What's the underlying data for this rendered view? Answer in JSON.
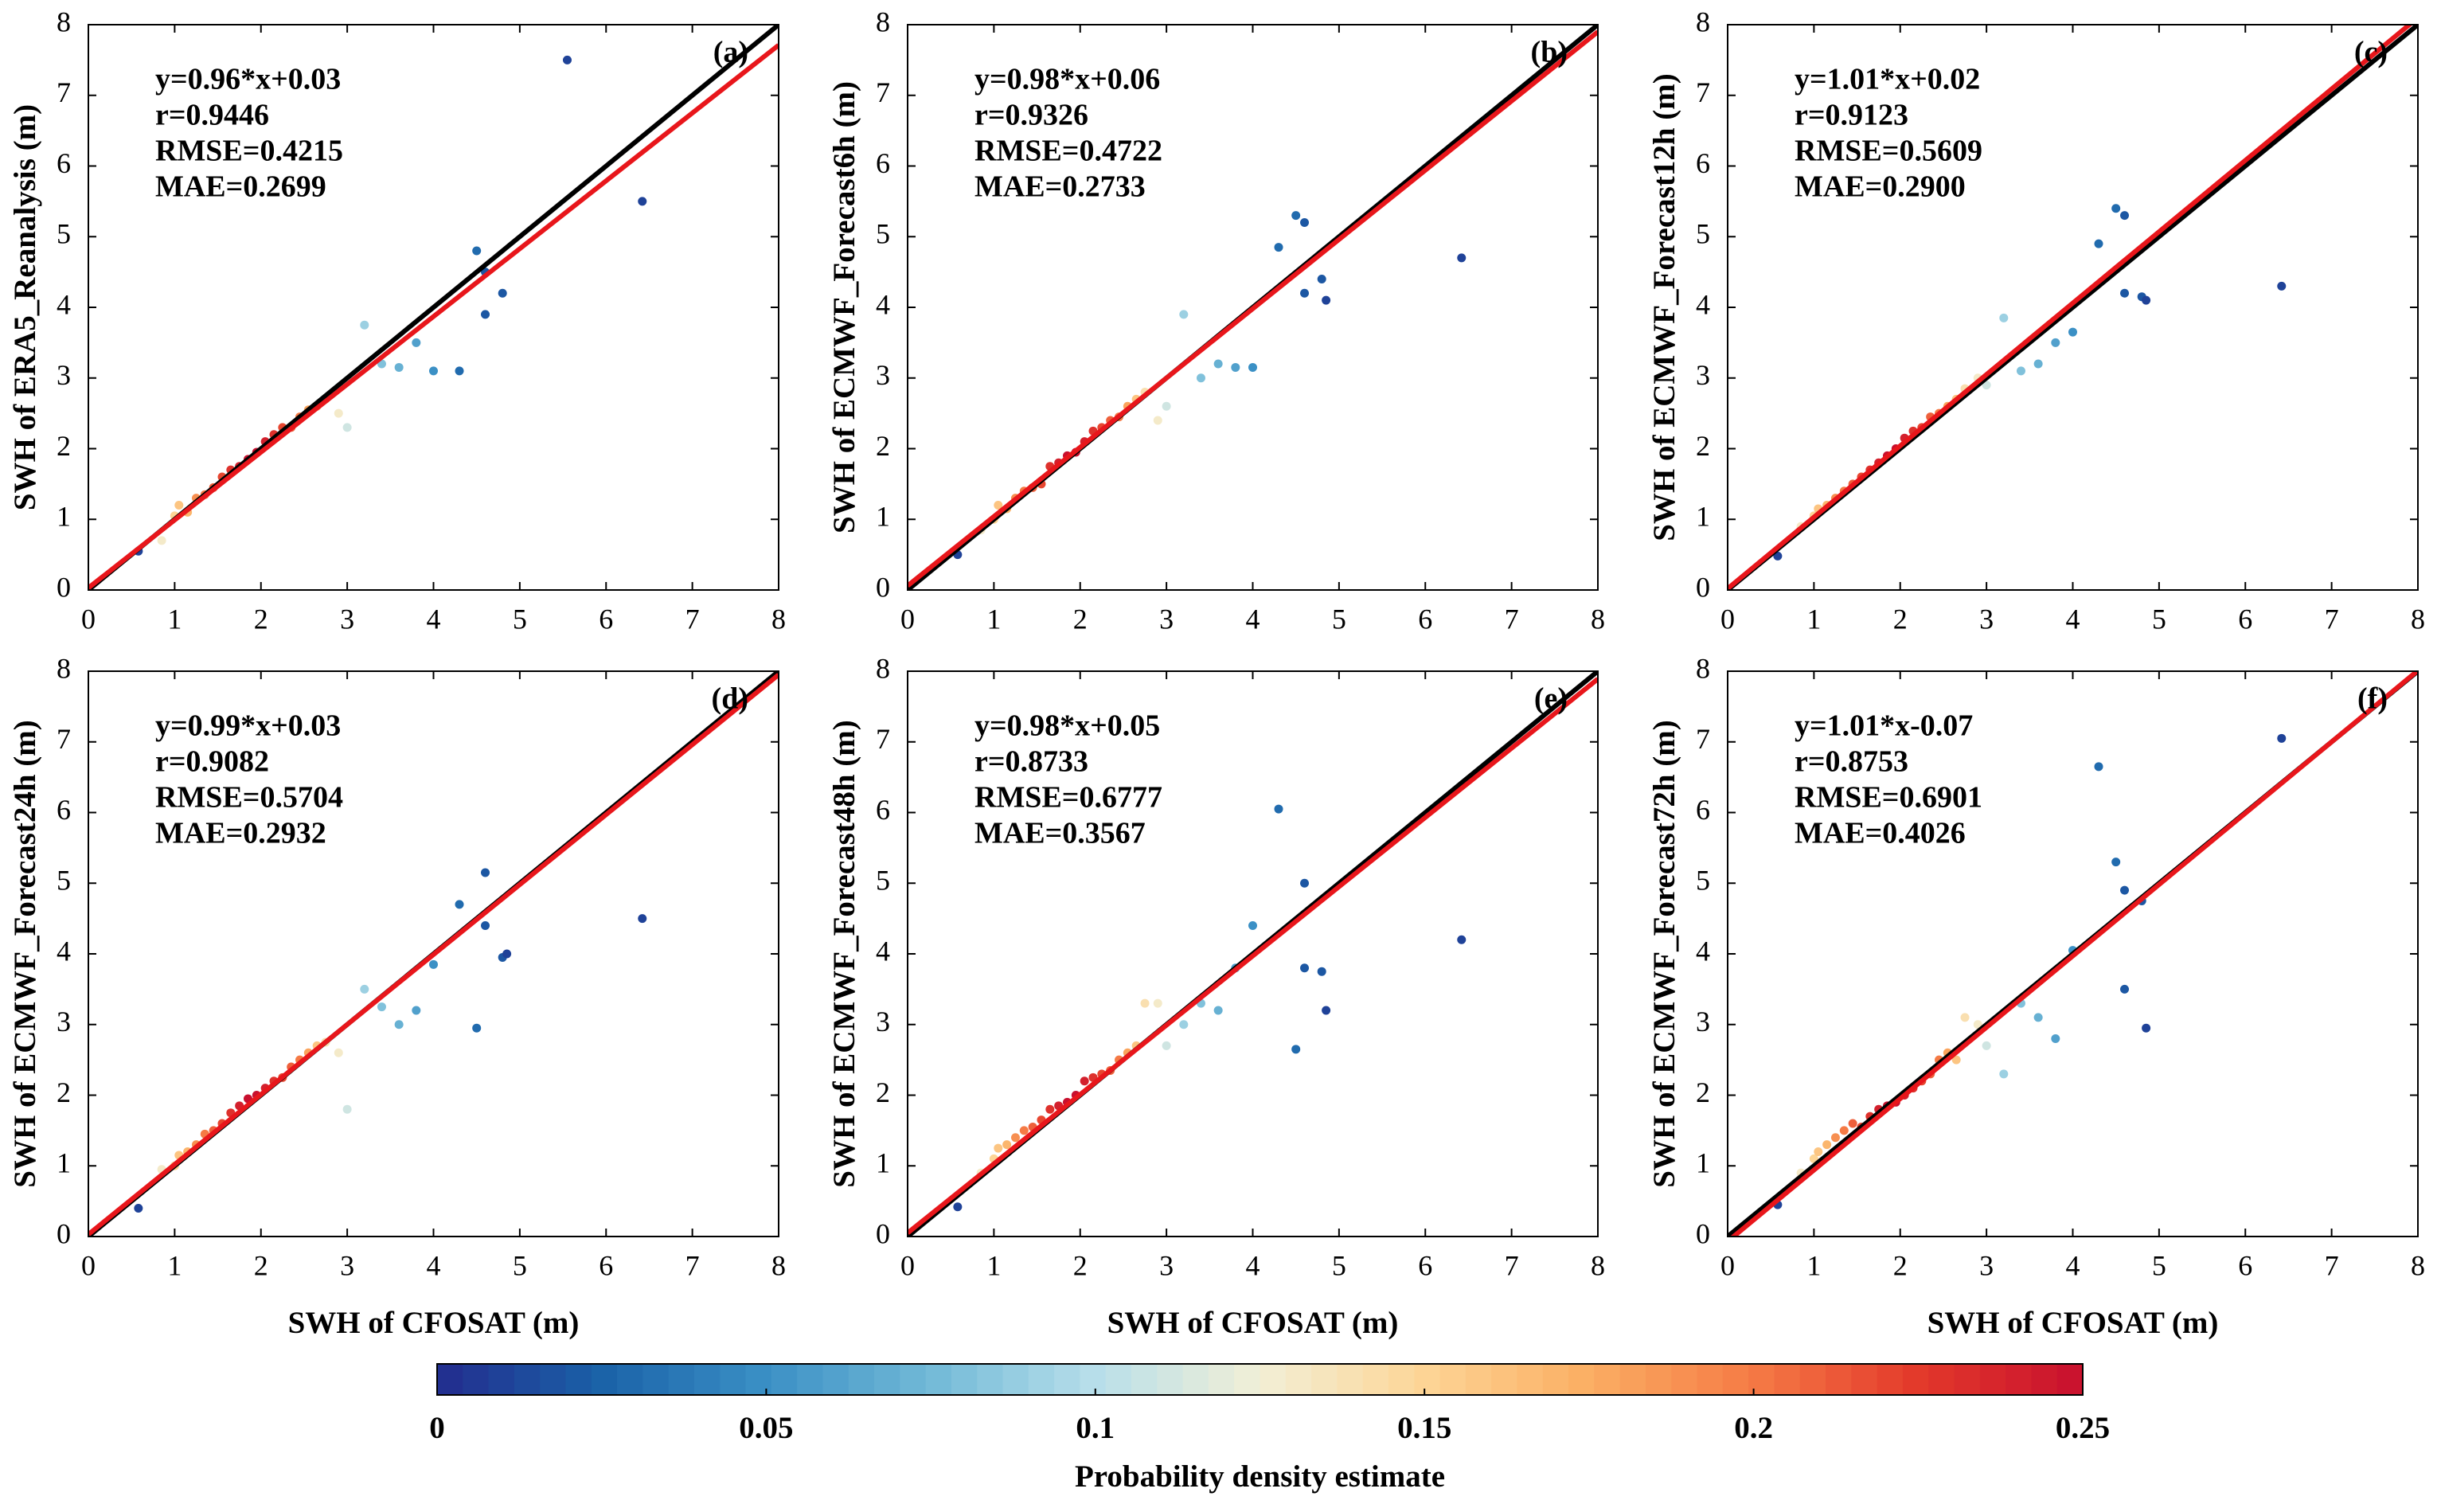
{
  "chart_data": [
    {
      "type": "scatter",
      "panel_label": "(a)",
      "annotations": [
        "y=0.96*x+0.03",
        "r=0.9446",
        "RMSE=0.4215",
        "MAE=0.2699"
      ],
      "ylabel": "SWH of ERA5_Reanalysis (m)",
      "xlim": [
        0,
        8
      ],
      "ylim": [
        0,
        8
      ],
      "xticks": [
        0,
        1,
        2,
        3,
        4,
        5,
        6,
        7,
        8
      ],
      "yticks": [
        0,
        1,
        2,
        3,
        4,
        5,
        6,
        7,
        8
      ],
      "series": [
        {
          "x": [
            0.58,
            0.85,
            1.0,
            1.05,
            1.15,
            1.25,
            1.35,
            1.45,
            1.55,
            1.65,
            1.75,
            1.85,
            1.95,
            2.05,
            2.15,
            2.25,
            2.35,
            2.45,
            2.55,
            2.65,
            2.75,
            2.9,
            3.0,
            3.2,
            3.4,
            3.6,
            3.8,
            4.0,
            4.3,
            4.5,
            4.6,
            4.6,
            4.8,
            5.55,
            6.42
          ],
          "values": [
            0.55,
            0.7,
            1.05,
            1.2,
            1.1,
            1.3,
            1.35,
            1.45,
            1.6,
            1.7,
            1.75,
            1.85,
            1.95,
            2.1,
            2.2,
            2.3,
            2.3,
            2.45,
            2.55,
            2.6,
            2.7,
            2.5,
            2.3,
            3.75,
            3.2,
            3.15,
            3.5,
            3.1,
            3.1,
            4.8,
            4.5,
            3.9,
            4.2,
            7.5,
            5.5
          ],
          "density": [
            0.01,
            0.13,
            0.15,
            0.16,
            0.17,
            0.19,
            0.2,
            0.21,
            0.22,
            0.23,
            0.24,
            0.25,
            0.25,
            0.24,
            0.23,
            0.22,
            0.21,
            0.2,
            0.18,
            0.16,
            0.14,
            0.13,
            0.11,
            0.09,
            0.08,
            0.07,
            0.06,
            0.05,
            0.03,
            0.03,
            0.02,
            0.02,
            0.02,
            0.01,
            0.01
          ]
        }
      ],
      "lines": [
        {
          "color": "#000000",
          "x": [
            0,
            8
          ],
          "y": [
            0,
            8
          ]
        },
        {
          "color": "#e8161b",
          "x": [
            0,
            8
          ],
          "y": [
            0.03,
            7.71
          ]
        }
      ]
    },
    {
      "type": "scatter",
      "panel_label": "(b)",
      "annotations": [
        "y=0.98*x+0.06",
        "r=0.9326",
        "RMSE=0.4722",
        "MAE=0.2733"
      ],
      "ylabel": "SWH of ECMWF_Forecast6h (m)",
      "xlim": [
        0,
        8
      ],
      "ylim": [
        0,
        8
      ],
      "xticks": [
        0,
        1,
        2,
        3,
        4,
        5,
        6,
        7,
        8
      ],
      "yticks": [
        0,
        1,
        2,
        3,
        4,
        5,
        6,
        7,
        8
      ],
      "series": [
        {
          "x": [
            0.58,
            0.85,
            1.0,
            1.05,
            1.15,
            1.25,
            1.35,
            1.45,
            1.55,
            1.65,
            1.75,
            1.85,
            1.95,
            2.05,
            2.15,
            2.25,
            2.35,
            2.45,
            2.55,
            2.65,
            2.75,
            2.9,
            3.0,
            3.2,
            3.4,
            3.6,
            3.8,
            4.0,
            4.3,
            4.5,
            4.6,
            4.6,
            4.8,
            4.85,
            6.42
          ],
          "values": [
            0.5,
            0.85,
            1.0,
            1.2,
            1.15,
            1.3,
            1.4,
            1.45,
            1.5,
            1.75,
            1.8,
            1.9,
            1.95,
            2.1,
            2.25,
            2.3,
            2.4,
            2.45,
            2.6,
            2.7,
            2.8,
            2.4,
            2.6,
            3.9,
            3.0,
            3.2,
            3.15,
            3.15,
            4.85,
            5.3,
            5.2,
            4.2,
            4.4,
            4.1,
            4.7
          ],
          "density": [
            0.01,
            0.13,
            0.15,
            0.16,
            0.17,
            0.19,
            0.2,
            0.21,
            0.22,
            0.23,
            0.24,
            0.25,
            0.25,
            0.24,
            0.23,
            0.22,
            0.21,
            0.2,
            0.18,
            0.16,
            0.14,
            0.13,
            0.11,
            0.09,
            0.08,
            0.07,
            0.06,
            0.05,
            0.03,
            0.03,
            0.02,
            0.02,
            0.02,
            0.01,
            0.01
          ]
        }
      ],
      "lines": [
        {
          "color": "#000000",
          "x": [
            0,
            8
          ],
          "y": [
            0,
            8
          ]
        },
        {
          "color": "#e8161b",
          "x": [
            0,
            8
          ],
          "y": [
            0.06,
            7.9
          ]
        }
      ]
    },
    {
      "type": "scatter",
      "panel_label": "(c)",
      "annotations": [
        "y=1.01*x+0.02",
        "r=0.9123",
        "RMSE=0.5609",
        "MAE=0.2900"
      ],
      "ylabel": "SWH of ECMWF_Forecast12h (m)",
      "xlim": [
        0,
        8
      ],
      "ylim": [
        0,
        8
      ],
      "xticks": [
        0,
        1,
        2,
        3,
        4,
        5,
        6,
        7,
        8
      ],
      "yticks": [
        0,
        1,
        2,
        3,
        4,
        5,
        6,
        7,
        8
      ],
      "series": [
        {
          "x": [
            0.58,
            0.85,
            1.0,
            1.05,
            1.15,
            1.25,
            1.35,
            1.45,
            1.55,
            1.65,
            1.75,
            1.85,
            1.95,
            2.05,
            2.15,
            2.25,
            2.35,
            2.45,
            2.55,
            2.65,
            2.75,
            2.9,
            3.0,
            3.2,
            3.4,
            3.6,
            3.8,
            4.0,
            4.3,
            4.5,
            4.6,
            4.6,
            4.8,
            4.85,
            6.42
          ],
          "values": [
            0.48,
            0.9,
            1.05,
            1.15,
            1.2,
            1.3,
            1.4,
            1.5,
            1.6,
            1.7,
            1.8,
            1.9,
            2.0,
            2.15,
            2.25,
            2.3,
            2.45,
            2.5,
            2.6,
            2.7,
            2.85,
            3.0,
            2.9,
            3.85,
            3.1,
            3.2,
            3.5,
            3.65,
            4.9,
            5.4,
            5.3,
            4.2,
            4.15,
            4.1,
            4.3
          ],
          "density": [
            0.01,
            0.13,
            0.15,
            0.16,
            0.17,
            0.19,
            0.2,
            0.21,
            0.22,
            0.23,
            0.24,
            0.25,
            0.25,
            0.24,
            0.23,
            0.22,
            0.21,
            0.2,
            0.18,
            0.16,
            0.14,
            0.13,
            0.11,
            0.09,
            0.08,
            0.07,
            0.06,
            0.05,
            0.03,
            0.03,
            0.02,
            0.02,
            0.02,
            0.01,
            0.01
          ]
        }
      ],
      "lines": [
        {
          "color": "#000000",
          "x": [
            0,
            8
          ],
          "y": [
            0,
            8
          ]
        },
        {
          "color": "#e8161b",
          "x": [
            0,
            8
          ],
          "y": [
            0.02,
            8.1
          ]
        }
      ]
    },
    {
      "type": "scatter",
      "panel_label": "(d)",
      "annotations": [
        "y=0.99*x+0.03",
        "r=0.9082",
        "RMSE=0.5704",
        "MAE=0.2932"
      ],
      "xlabel": "SWH of CFOSAT (m)",
      "ylabel": "SWH of ECMWF_Forecast24h (m)",
      "xlim": [
        0,
        8
      ],
      "ylim": [
        0,
        8
      ],
      "xticks": [
        0,
        1,
        2,
        3,
        4,
        5,
        6,
        7,
        8
      ],
      "yticks": [
        0,
        1,
        2,
        3,
        4,
        5,
        6,
        7,
        8
      ],
      "series": [
        {
          "x": [
            0.58,
            0.85,
            1.0,
            1.05,
            1.15,
            1.25,
            1.35,
            1.45,
            1.55,
            1.65,
            1.75,
            1.85,
            1.95,
            2.05,
            2.15,
            2.25,
            2.35,
            2.45,
            2.55,
            2.65,
            2.75,
            2.9,
            3.0,
            3.2,
            3.4,
            3.6,
            3.8,
            4.0,
            4.3,
            4.5,
            4.6,
            4.6,
            4.8,
            4.85,
            6.42
          ],
          "values": [
            0.4,
            0.95,
            1.0,
            1.15,
            1.2,
            1.3,
            1.45,
            1.5,
            1.6,
            1.75,
            1.85,
            1.95,
            2.0,
            2.1,
            2.2,
            2.25,
            2.4,
            2.5,
            2.6,
            2.7,
            2.75,
            2.6,
            1.8,
            3.5,
            3.25,
            3.0,
            3.2,
            3.85,
            4.7,
            2.95,
            5.15,
            4.4,
            3.95,
            4.0,
            4.5
          ],
          "density": [
            0.01,
            0.13,
            0.15,
            0.16,
            0.17,
            0.19,
            0.2,
            0.21,
            0.22,
            0.23,
            0.24,
            0.25,
            0.25,
            0.24,
            0.23,
            0.22,
            0.21,
            0.2,
            0.18,
            0.16,
            0.14,
            0.13,
            0.11,
            0.09,
            0.08,
            0.07,
            0.06,
            0.05,
            0.03,
            0.03,
            0.02,
            0.02,
            0.02,
            0.01,
            0.01
          ]
        }
      ],
      "lines": [
        {
          "color": "#000000",
          "x": [
            0,
            8
          ],
          "y": [
            0,
            8
          ]
        },
        {
          "color": "#e8161b",
          "x": [
            0,
            8
          ],
          "y": [
            0.03,
            7.95
          ]
        }
      ]
    },
    {
      "type": "scatter",
      "panel_label": "(e)",
      "annotations": [
        "y=0.98*x+0.05",
        "r=0.8733",
        "RMSE=0.6777",
        "MAE=0.3567"
      ],
      "xlabel": "SWH of CFOSAT (m)",
      "ylabel": "SWH of ECMWF_Forecast48h (m)",
      "xlim": [
        0,
        8
      ],
      "ylim": [
        0,
        8
      ],
      "xticks": [
        0,
        1,
        2,
        3,
        4,
        5,
        6,
        7,
        8
      ],
      "yticks": [
        0,
        1,
        2,
        3,
        4,
        5,
        6,
        7,
        8
      ],
      "series": [
        {
          "x": [
            0.58,
            0.85,
            1.0,
            1.05,
            1.15,
            1.25,
            1.35,
            1.45,
            1.55,
            1.65,
            1.75,
            1.85,
            1.95,
            2.05,
            2.15,
            2.25,
            2.35,
            2.45,
            2.55,
            2.65,
            2.75,
            2.9,
            3.0,
            3.2,
            3.4,
            3.6,
            3.8,
            4.0,
            4.3,
            4.5,
            4.6,
            4.6,
            4.8,
            4.85,
            6.42
          ],
          "values": [
            0.42,
            0.9,
            1.1,
            1.25,
            1.3,
            1.4,
            1.5,
            1.55,
            1.65,
            1.8,
            1.85,
            1.9,
            2.0,
            2.2,
            2.25,
            2.3,
            2.35,
            2.5,
            2.6,
            2.7,
            3.3,
            3.3,
            2.7,
            3.0,
            3.3,
            3.2,
            3.8,
            4.4,
            6.05,
            2.65,
            5.0,
            3.8,
            3.75,
            3.2,
            4.2
          ],
          "density": [
            0.01,
            0.13,
            0.15,
            0.16,
            0.17,
            0.19,
            0.2,
            0.21,
            0.22,
            0.23,
            0.24,
            0.25,
            0.25,
            0.24,
            0.23,
            0.22,
            0.21,
            0.2,
            0.18,
            0.16,
            0.14,
            0.13,
            0.11,
            0.09,
            0.08,
            0.07,
            0.06,
            0.05,
            0.03,
            0.03,
            0.02,
            0.02,
            0.02,
            0.01,
            0.01
          ]
        }
      ],
      "lines": [
        {
          "color": "#000000",
          "x": [
            0,
            8
          ],
          "y": [
            0,
            8
          ]
        },
        {
          "color": "#e8161b",
          "x": [
            0,
            8
          ],
          "y": [
            0.05,
            7.89
          ]
        }
      ]
    },
    {
      "type": "scatter",
      "panel_label": "(f)",
      "annotations": [
        "y=1.01*x-0.07",
        "r=0.8753",
        "RMSE=0.6901",
        "MAE=0.4026"
      ],
      "xlabel": "SWH of CFOSAT (m)",
      "ylabel": "SWH of ECMWF_Forecast72h (m)",
      "xlim": [
        0,
        8
      ],
      "ylim": [
        0,
        8
      ],
      "xticks": [
        0,
        1,
        2,
        3,
        4,
        5,
        6,
        7,
        8
      ],
      "yticks": [
        0,
        1,
        2,
        3,
        4,
        5,
        6,
        7,
        8
      ],
      "series": [
        {
          "x": [
            0.58,
            0.85,
            1.0,
            1.05,
            1.15,
            1.25,
            1.35,
            1.45,
            1.55,
            1.65,
            1.75,
            1.85,
            1.95,
            2.05,
            2.15,
            2.25,
            2.35,
            2.45,
            2.55,
            2.65,
            2.75,
            2.9,
            3.0,
            3.2,
            3.4,
            3.6,
            3.8,
            4.0,
            4.3,
            4.5,
            4.6,
            4.6,
            4.8,
            4.85,
            6.42
          ],
          "values": [
            0.45,
            0.9,
            1.1,
            1.2,
            1.3,
            1.4,
            1.5,
            1.6,
            1.55,
            1.7,
            1.8,
            1.85,
            1.9,
            2.0,
            2.1,
            2.2,
            2.3,
            2.5,
            2.6,
            2.5,
            3.1,
            3.0,
            2.7,
            2.3,
            3.3,
            3.1,
            2.8,
            4.05,
            6.65,
            5.3,
            4.9,
            3.5,
            4.75,
            2.95,
            7.05
          ],
          "density": [
            0.01,
            0.13,
            0.15,
            0.16,
            0.17,
            0.19,
            0.2,
            0.21,
            0.22,
            0.23,
            0.24,
            0.25,
            0.25,
            0.24,
            0.23,
            0.22,
            0.21,
            0.2,
            0.18,
            0.16,
            0.14,
            0.13,
            0.11,
            0.09,
            0.08,
            0.07,
            0.06,
            0.05,
            0.03,
            0.03,
            0.02,
            0.02,
            0.02,
            0.01,
            0.01
          ]
        }
      ],
      "lines": [
        {
          "color": "#000000",
          "x": [
            0,
            8
          ],
          "y": [
            0,
            8
          ]
        },
        {
          "color": "#e8161b",
          "x": [
            0,
            8
          ],
          "y": [
            -0.07,
            8.01
          ]
        }
      ]
    }
  ],
  "colorbar": {
    "label": "Probability density estimate",
    "lim": [
      0,
      0.25
    ],
    "ticks": [
      0,
      0.05,
      0.1,
      0.15,
      0.2,
      0.25
    ],
    "colors": [
      "#232c8e",
      "#1a62a8",
      "#3b90c5",
      "#72b9d7",
      "#b8dfea",
      "#f2efd6",
      "#fdd596",
      "#fbae63",
      "#f57a45",
      "#e3392b",
      "#c8102e"
    ]
  }
}
